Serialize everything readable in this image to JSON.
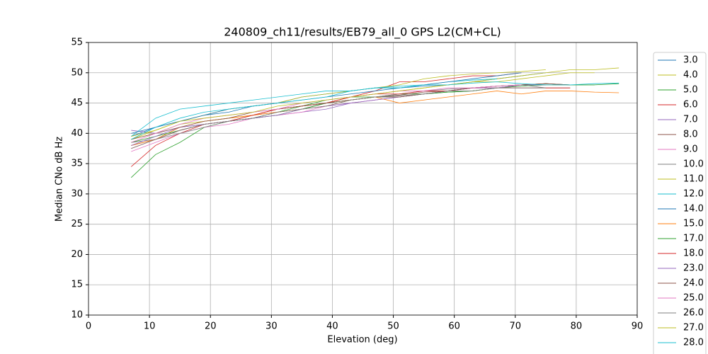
{
  "chart_data": {
    "type": "line",
    "title": "240809_ch11/results/EB79_all_0 GPS L2(CM+CL)",
    "x_label": "Elevation (deg)",
    "y_label": "Median CNo dB Hz",
    "x": [
      7,
      11,
      15,
      19,
      23,
      27,
      31,
      35,
      39,
      43,
      47,
      51,
      55,
      59,
      63,
      67,
      71,
      75,
      79,
      83,
      87
    ],
    "xlim": [
      0,
      90
    ],
    "xticks": [
      0,
      10,
      20,
      30,
      40,
      50,
      60,
      70,
      80,
      90
    ],
    "ylim": [
      10,
      55
    ],
    "yticks": [
      10,
      15,
      20,
      25,
      30,
      35,
      40,
      45,
      50,
      55
    ],
    "grid": true,
    "legend": "outside-right",
    "series": [
      {
        "name": "3.0",
        "color": "#1f77b4",
        "values": [
          39.5,
          41,
          42,
          43,
          43.5,
          44.5,
          45,
          46,
          46.5,
          47,
          47.5,
          47.5,
          47.8,
          48,
          48.5,
          49,
          49.5,
          50,
          null,
          null,
          null
        ]
      },
      {
        "name": "4.0",
        "color": "#bcbd22",
        "values": [
          39,
          40,
          41.5,
          42,
          42.5,
          43,
          44,
          44.5,
          45,
          46,
          46.5,
          47,
          47.5,
          48,
          48.5,
          49,
          49.5,
          50,
          50.5,
          50.5,
          50.8
        ]
      },
      {
        "name": "5.0",
        "color": "#2ca02c",
        "values": [
          32.7,
          36.5,
          38.5,
          41,
          42,
          42.5,
          43.5,
          44.5,
          45.5,
          46,
          46,
          46.5,
          46.5,
          46.8,
          47,
          47.5,
          48,
          48.2,
          48,
          48,
          48.2
        ]
      },
      {
        "name": "6.0",
        "color": "#d62728",
        "values": [
          34.5,
          38,
          40,
          41.5,
          42,
          43,
          44,
          44.5,
          45,
          46,
          47,
          48.5,
          48.5,
          49,
          49.5,
          49.5,
          50,
          null,
          null,
          null,
          null
        ]
      },
      {
        "name": "7.0",
        "color": "#9467bd",
        "values": [
          40.5,
          40,
          41,
          41.5,
          42,
          42.5,
          43,
          43.5,
          44,
          45,
          45.5,
          46,
          46.5,
          47,
          47.5,
          47.8,
          48,
          48,
          null,
          null,
          null
        ]
      },
      {
        "name": "8.0",
        "color": "#8c564b",
        "values": [
          38,
          39,
          40.5,
          41.5,
          42,
          43,
          43.5,
          44,
          45,
          45.5,
          46,
          46.3,
          46.8,
          47,
          47.5,
          47.8,
          48,
          48.2,
          48,
          null,
          null
        ]
      },
      {
        "name": "9.0",
        "color": "#e377c2",
        "values": [
          37,
          38.5,
          40,
          41,
          41.5,
          42.5,
          43,
          43.5,
          44.5,
          45,
          45.5,
          46,
          46.5,
          47,
          47.5,
          47.5,
          47.8,
          null,
          null,
          null,
          null
        ]
      },
      {
        "name": "10.0",
        "color": "#7f7f7f",
        "values": [
          38.5,
          39,
          40,
          41,
          42,
          42.5,
          43.5,
          44,
          45,
          45.5,
          46,
          46.5,
          47,
          47.3,
          47.5,
          47.8,
          48,
          47.5,
          47.5,
          null,
          null
        ]
      },
      {
        "name": "11.0",
        "color": "#bcbd22",
        "values": [
          39,
          40.5,
          42,
          43,
          44,
          44.5,
          45,
          46,
          46.5,
          47,
          47.5,
          48,
          49,
          49.5,
          49.8,
          50,
          50.2,
          50.5,
          null,
          null,
          null
        ]
      },
      {
        "name": "12.0",
        "color": "#17becf",
        "values": [
          39.5,
          42.5,
          44,
          44.5,
          45,
          45.5,
          46,
          46.5,
          47,
          47,
          47.5,
          47.8,
          48,
          48.5,
          48.8,
          49,
          null,
          null,
          null,
          null,
          null
        ]
      },
      {
        "name": "14.0",
        "color": "#1f77b4",
        "values": [
          40,
          41,
          42,
          43,
          44,
          44.5,
          45,
          45.5,
          46,
          46.5,
          47,
          47.5,
          48,
          48.5,
          49,
          49.5,
          50,
          null,
          null,
          null,
          null
        ]
      },
      {
        "name": "15.0",
        "color": "#ff7f0e",
        "values": [
          38,
          39,
          41,
          42,
          42.5,
          43,
          43.5,
          44,
          44.5,
          45.5,
          46,
          45,
          45.5,
          46,
          46.5,
          47,
          46.5,
          47,
          47,
          46.8,
          46.7
        ]
      },
      {
        "name": "17.0",
        "color": "#2ca02c",
        "values": [
          38.5,
          39.5,
          40.5,
          41.5,
          42,
          42.5,
          43,
          44,
          45,
          45.5,
          46,
          46,
          46.5,
          46.8,
          47,
          47.5,
          47.8,
          48,
          48,
          48,
          null
        ]
      },
      {
        "name": "18.0",
        "color": "#d62728",
        "values": [
          37.5,
          39,
          40.5,
          41.5,
          42,
          43,
          44,
          44.5,
          45,
          46,
          46.5,
          46.5,
          47,
          47,
          47.5,
          47.5,
          47.5,
          47.5,
          47.5,
          null,
          null
        ]
      },
      {
        "name": "23.0",
        "color": "#9467bd",
        "values": [
          38,
          39.5,
          41,
          41.5,
          42,
          42.5,
          43,
          44,
          44.5,
          45,
          45.5,
          46,
          46.5,
          47,
          47.5,
          47.5,
          48,
          48,
          null,
          null,
          null
        ]
      },
      {
        "name": "24.0",
        "color": "#8c564b",
        "values": [
          39,
          40,
          41,
          42,
          42.5,
          43.5,
          44,
          44.5,
          45,
          45.5,
          46,
          46,
          46.5,
          47,
          47.5,
          47.8,
          48,
          48.2,
          48,
          null,
          null
        ]
      },
      {
        "name": "25.0",
        "color": "#e377c2",
        "values": [
          38.5,
          40,
          41.5,
          42.5,
          43,
          43.5,
          44,
          45,
          45.5,
          46,
          46.5,
          47,
          47,
          47.5,
          47.5,
          47.8,
          48,
          null,
          null,
          null,
          null
        ]
      },
      {
        "name": "26.0",
        "color": "#7f7f7f",
        "values": [
          37.5,
          39,
          40.5,
          41.5,
          42,
          42.5,
          43.5,
          44,
          44.5,
          45.5,
          46,
          46.2,
          46.5,
          47,
          47,
          47.5,
          47.5,
          47.5,
          null,
          null,
          null
        ]
      },
      {
        "name": "27.0",
        "color": "#bcbd22",
        "values": [
          39.5,
          40.5,
          42,
          42.5,
          43,
          43.5,
          44.5,
          45,
          45.5,
          46,
          46.5,
          47,
          47.5,
          48,
          48.5,
          48.5,
          49,
          49.5,
          50,
          50,
          null
        ]
      },
      {
        "name": "28.0",
        "color": "#17becf",
        "values": [
          39,
          41,
          42.5,
          43.5,
          44,
          44.5,
          45,
          45.5,
          46,
          47,
          47.5,
          47.5,
          48,
          48,
          48.3,
          48.5,
          48.2,
          48,
          48,
          48.2,
          48.3
        ]
      }
    ]
  }
}
